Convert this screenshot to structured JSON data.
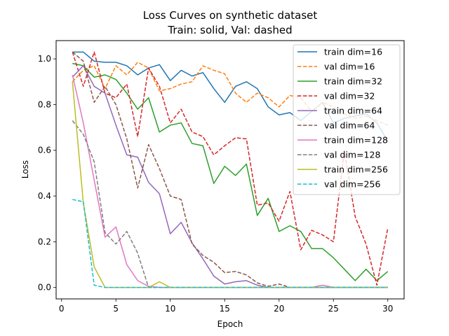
{
  "chart_data": {
    "type": "line",
    "title": "Loss Curves on synthetic dataset",
    "subtitle": "Train: solid, Val: dashed",
    "xlabel": "Epoch",
    "ylabel": "Loss",
    "xlim": [
      -0.5,
      31.5
    ],
    "ylim": [
      -0.05,
      1.08
    ],
    "xticks": [
      0,
      5,
      10,
      15,
      20,
      25,
      30
    ],
    "yticks": [
      0.0,
      0.2,
      0.4,
      0.6,
      0.8,
      1.0
    ],
    "ytick_labels": [
      "0.0",
      "0.2",
      "0.4",
      "0.6",
      "0.8",
      "1.0"
    ],
    "grid": false,
    "legend_position": "top-right",
    "x": [
      1,
      2,
      3,
      4,
      5,
      6,
      7,
      8,
      9,
      10,
      11,
      12,
      13,
      14,
      15,
      16,
      17,
      18,
      19,
      20,
      21,
      22,
      23,
      24,
      25,
      26,
      27,
      28,
      29,
      30
    ],
    "series": [
      {
        "name": "train dim=16",
        "style": "solid",
        "color": "#1f77b4",
        "values": [
          1.03,
          1.03,
          0.99,
          0.985,
          0.985,
          0.97,
          0.93,
          0.96,
          0.975,
          0.905,
          0.95,
          0.925,
          0.94,
          0.87,
          0.81,
          0.88,
          0.9,
          0.87,
          0.79,
          0.755,
          0.765,
          0.73,
          0.77,
          0.81,
          0.72,
          0.74,
          0.75,
          0.76,
          0.72,
          0.64
        ]
      },
      {
        "name": "val dim=16",
        "style": "dashed",
        "color": "#ff7f0e",
        "values": [
          0.9,
          0.95,
          0.97,
          0.87,
          0.97,
          0.93,
          0.985,
          0.96,
          0.86,
          0.87,
          0.89,
          0.9,
          0.97,
          0.95,
          0.935,
          0.85,
          0.81,
          0.85,
          0.83,
          0.79,
          0.84,
          0.83,
          0.77,
          0.81,
          0.79,
          0.76,
          0.74,
          0.75,
          0.73,
          0.71
        ]
      },
      {
        "name": "train dim=32",
        "style": "solid",
        "color": "#2ca02c",
        "values": [
          0.98,
          0.97,
          0.92,
          0.93,
          0.91,
          0.85,
          0.78,
          0.83,
          0.68,
          0.71,
          0.72,
          0.63,
          0.62,
          0.455,
          0.53,
          0.49,
          0.54,
          0.315,
          0.39,
          0.245,
          0.27,
          0.245,
          0.17,
          0.17,
          0.13,
          0.08,
          0.03,
          0.08,
          0.03,
          0.07
        ]
      },
      {
        "name": "val dim=32",
        "style": "dashed",
        "color": "#d62728",
        "values": [
          1.03,
          0.88,
          1.03,
          0.85,
          0.83,
          0.89,
          0.66,
          0.96,
          0.88,
          0.72,
          0.78,
          0.68,
          0.66,
          0.58,
          0.62,
          0.655,
          0.65,
          0.36,
          0.37,
          0.29,
          0.42,
          0.165,
          0.25,
          0.23,
          0.2,
          0.6,
          0.31,
          0.19,
          0.01,
          0.26
        ]
      },
      {
        "name": "train dim=64",
        "style": "solid",
        "color": "#9467bd",
        "values": [
          0.92,
          0.97,
          0.88,
          0.85,
          0.71,
          0.58,
          0.57,
          0.46,
          0.41,
          0.235,
          0.285,
          0.195,
          0.125,
          0.05,
          0.015,
          0.025,
          0.03,
          0.01,
          0.0,
          0.0,
          0.0,
          0.0,
          0.0,
          0.0,
          0.0,
          0.0,
          0.0,
          0.0,
          0.0,
          0.0
        ]
      },
      {
        "name": "val dim=64",
        "style": "dashed",
        "color": "#8c564b",
        "values": [
          1.03,
          0.99,
          0.81,
          0.88,
          0.8,
          0.65,
          0.435,
          0.625,
          0.52,
          0.4,
          0.385,
          0.19,
          0.14,
          0.11,
          0.065,
          0.07,
          0.055,
          0.02,
          0.005,
          0.015,
          0.0,
          0.0,
          0.0,
          0.0,
          0.0,
          0.0,
          0.0,
          0.0,
          0.0,
          0.0
        ]
      },
      {
        "name": "train dim=128",
        "style": "solid",
        "color": "#e377c2",
        "values": [
          0.93,
          0.72,
          0.47,
          0.22,
          0.265,
          0.1,
          0.03,
          0.005,
          0.0,
          0.0,
          0.0,
          0.0,
          0.0,
          0.0,
          0.0,
          0.0,
          0.0,
          0.0,
          0.0,
          0.0,
          0.0,
          0.0,
          0.0,
          0.01,
          0.0,
          0.0,
          0.0,
          0.0,
          0.0,
          0.0
        ]
      },
      {
        "name": "val dim=128",
        "style": "dashed",
        "color": "#7f7f7f",
        "values": [
          0.73,
          0.67,
          0.55,
          0.24,
          0.19,
          0.245,
          0.15,
          0.0,
          0.0,
          0.0,
          0.0,
          0.0,
          0.0,
          0.0,
          0.0,
          0.0,
          0.0,
          0.0,
          0.0,
          0.0,
          0.0,
          0.0,
          0.0,
          0.0,
          0.0,
          0.0,
          0.0,
          0.0,
          0.0,
          0.0
        ]
      },
      {
        "name": "train dim=256",
        "style": "solid",
        "color": "#bcbd22",
        "values": [
          0.9,
          0.37,
          0.09,
          0.0,
          0.0,
          0.0,
          0.0,
          0.0,
          0.025,
          0.0,
          0.0,
          0.0,
          0.0,
          0.0,
          0.0,
          0.0,
          0.0,
          0.0,
          0.0,
          0.0,
          0.0,
          0.0,
          0.0,
          0.0,
          0.0,
          0.0,
          0.0,
          0.0,
          0.0,
          0.0
        ]
      },
      {
        "name": "val dim=256",
        "style": "dashed",
        "color": "#17becf",
        "values": [
          0.385,
          0.375,
          0.01,
          0.0,
          0.0,
          0.0,
          0.0,
          0.0,
          0.0,
          0.0,
          0.0,
          0.0,
          0.0,
          0.0,
          0.0,
          0.0,
          0.0,
          0.0,
          0.0,
          0.0,
          0.0,
          0.0,
          0.0,
          0.0,
          0.0,
          0.0,
          0.0,
          0.0,
          0.0,
          0.0
        ]
      }
    ]
  }
}
